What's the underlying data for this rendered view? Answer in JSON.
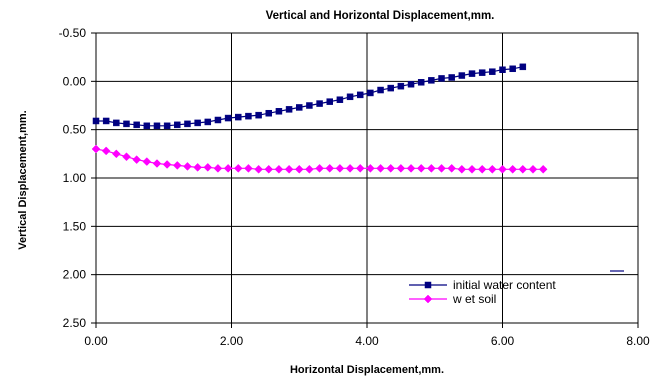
{
  "chart_data": {
    "type": "scatter",
    "title": "Vertical and Horizontal Displacement,mm.",
    "xlabel": "Horizontal Displacement,mm.",
    "ylabel": "Vertical Displacement,mm.",
    "xlim": [
      0,
      8
    ],
    "ylim": [
      -0.5,
      2.5
    ],
    "y_inverted": true,
    "x_ticks": [
      "0.00",
      "2.00",
      "4.00",
      "6.00",
      "8.00"
    ],
    "y_ticks": [
      "-0.50",
      "0.00",
      "0.50",
      "1.00",
      "1.50",
      "2.00",
      "2.50"
    ],
    "grid": "vertical and horizontal major gridlines",
    "legend_position": "bottom-right",
    "series": [
      {
        "name": "initial water content",
        "color": "#000080",
        "marker": "square",
        "x": [
          0,
          0.15,
          0.3,
          0.45,
          0.6,
          0.75,
          0.9,
          1.05,
          1.2,
          1.35,
          1.5,
          1.65,
          1.8,
          1.95,
          2.1,
          2.25,
          2.4,
          2.55,
          2.7,
          2.85,
          3.0,
          3.15,
          3.3,
          3.45,
          3.6,
          3.75,
          3.9,
          4.05,
          4.2,
          4.35,
          4.5,
          4.65,
          4.8,
          4.95,
          5.1,
          5.25,
          5.4,
          5.55,
          5.7,
          5.85,
          6.0,
          6.15,
          6.3
        ],
        "y": [
          0.41,
          0.41,
          0.43,
          0.44,
          0.45,
          0.46,
          0.46,
          0.46,
          0.45,
          0.44,
          0.43,
          0.42,
          0.4,
          0.38,
          0.37,
          0.36,
          0.35,
          0.33,
          0.31,
          0.29,
          0.27,
          0.25,
          0.23,
          0.21,
          0.19,
          0.16,
          0.14,
          0.12,
          0.09,
          0.07,
          0.05,
          0.03,
          0.01,
          -0.01,
          -0.03,
          -0.04,
          -0.06,
          -0.08,
          -0.09,
          -0.1,
          -0.12,
          -0.13,
          -0.15
        ]
      },
      {
        "name": "w et soil",
        "color": "#FF00FF",
        "marker": "diamond",
        "x": [
          0,
          0.15,
          0.3,
          0.45,
          0.6,
          0.75,
          0.9,
          1.05,
          1.2,
          1.35,
          1.5,
          1.65,
          1.8,
          1.95,
          2.1,
          2.25,
          2.4,
          2.55,
          2.7,
          2.85,
          3.0,
          3.15,
          3.3,
          3.45,
          3.6,
          3.75,
          3.9,
          4.05,
          4.2,
          4.35,
          4.5,
          4.65,
          4.8,
          4.95,
          5.1,
          5.25,
          5.4,
          5.55,
          5.7,
          5.85,
          6.0,
          6.15,
          6.3,
          6.45,
          6.6
        ],
        "y": [
          0.7,
          0.72,
          0.75,
          0.78,
          0.81,
          0.83,
          0.85,
          0.86,
          0.87,
          0.88,
          0.89,
          0.89,
          0.9,
          0.9,
          0.9,
          0.9,
          0.91,
          0.91,
          0.91,
          0.91,
          0.91,
          0.91,
          0.9,
          0.9,
          0.9,
          0.9,
          0.9,
          0.9,
          0.9,
          0.9,
          0.9,
          0.9,
          0.9,
          0.9,
          0.9,
          0.9,
          0.91,
          0.91,
          0.91,
          0.91,
          0.91,
          0.91,
          0.91,
          0.91,
          0.91
        ]
      }
    ]
  }
}
